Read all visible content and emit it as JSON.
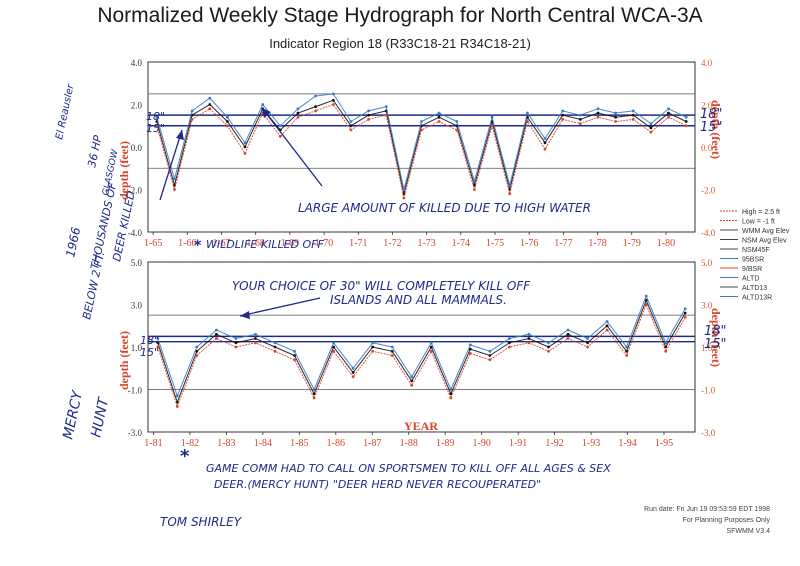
{
  "title": "Normalized Weekly Stage Hydrograph for North Central WCA-3A",
  "subtitle": "Indicator Region 18 (R33C18-21 R34C18-21)",
  "colors": {
    "axis_left": "#2b2b2b",
    "axis_right": "#e05a2b",
    "hand": "#1e2a8a",
    "black_series": "#111111",
    "red_series": "#d9442a",
    "blue_series": "#3a78c8"
  },
  "chart_data": [
    {
      "type": "line",
      "panel": "top",
      "x_ticks": [
        "1-65",
        "1-66",
        "1-67",
        "1-68",
        "1-69",
        "1-70",
        "1-71",
        "1-72",
        "1-73",
        "1-74",
        "1-75",
        "1-76",
        "1-77",
        "1-78",
        "1-79",
        "1-80"
      ],
      "y_ticks": [
        "4.0",
        "2.0",
        "0.0",
        "-2.0",
        "-4.0"
      ],
      "ylim": [
        -4.0,
        4.0
      ],
      "ylabel_left": "depth (feet)",
      "ylabel_right": "depth (feet)",
      "reference_lines": [
        2.5,
        1.5,
        1.0,
        -1.0
      ],
      "series": [
        {
          "name": "black",
          "color": "#111111",
          "values": [
            1.2,
            -1.8,
            1.5,
            2.0,
            1.2,
            0.0,
            1.8,
            0.8,
            1.6,
            1.9,
            2.2,
            1.0,
            1.5,
            1.7,
            -2.2,
            1.0,
            1.4,
            1.0,
            -1.8,
            1.2,
            -2.0,
            1.4,
            0.2,
            1.5,
            1.3,
            1.6,
            1.4,
            1.5,
            0.9,
            1.6,
            1.2
          ]
        },
        {
          "name": "red",
          "color": "#d9442a",
          "values": [
            1.0,
            -2.0,
            1.3,
            1.8,
            1.0,
            -0.3,
            1.6,
            0.5,
            1.4,
            1.7,
            2.0,
            0.8,
            1.3,
            1.5,
            -2.4,
            0.8,
            1.2,
            0.8,
            -2.0,
            1.0,
            -2.2,
            1.2,
            -0.1,
            1.3,
            1.1,
            1.4,
            1.2,
            1.3,
            0.7,
            1.4,
            1.0
          ]
        },
        {
          "name": "blue",
          "color": "#3a78c8",
          "values": [
            1.4,
            -1.5,
            1.7,
            2.3,
            1.4,
            0.2,
            2.0,
            1.0,
            1.8,
            2.4,
            2.5,
            1.2,
            1.7,
            1.9,
            -2.0,
            1.2,
            1.6,
            1.2,
            -1.6,
            1.4,
            -1.8,
            1.6,
            0.4,
            1.7,
            1.5,
            1.8,
            1.6,
            1.7,
            1.1,
            1.8,
            1.4
          ]
        }
      ]
    },
    {
      "type": "line",
      "panel": "bottom",
      "x_ticks": [
        "1-81",
        "1-82",
        "1-83",
        "1-84",
        "1-85",
        "1-86",
        "1-87",
        "1-88",
        "1-89",
        "1-90",
        "1-91",
        "1-92",
        "1-93",
        "1-94",
        "1-95"
      ],
      "y_ticks": [
        "5.0",
        "3.0",
        "1.0",
        "-1.0",
        "-3.0"
      ],
      "ylim": [
        -3.0,
        5.0
      ],
      "ylabel_left": "depth (feet)",
      "ylabel_right": "depth (feet)",
      "xlabel": "YEAR",
      "reference_lines": [
        2.5,
        1.5,
        1.25,
        -1.0
      ],
      "series": [
        {
          "name": "black",
          "color": "#111111",
          "values": [
            1.2,
            -1.6,
            0.8,
            1.6,
            1.2,
            1.4,
            1.0,
            0.6,
            -1.2,
            1.0,
            -0.2,
            1.0,
            0.8,
            -0.6,
            1.0,
            -1.2,
            0.9,
            0.6,
            1.2,
            1.4,
            1.0,
            1.6,
            1.2,
            2.0,
            0.8,
            3.2,
            1.0,
            2.6
          ]
        },
        {
          "name": "red",
          "color": "#d9442a",
          "values": [
            1.0,
            -1.8,
            0.6,
            1.4,
            1.0,
            1.2,
            0.8,
            0.4,
            -1.4,
            0.8,
            -0.4,
            0.8,
            0.6,
            -0.8,
            0.8,
            -1.4,
            0.7,
            0.4,
            1.0,
            1.2,
            0.8,
            1.4,
            1.0,
            1.8,
            0.6,
            3.0,
            0.8,
            2.4
          ]
        },
        {
          "name": "blue",
          "color": "#3a78c8",
          "values": [
            1.4,
            -1.3,
            1.0,
            1.8,
            1.4,
            1.6,
            1.2,
            0.8,
            -1.0,
            1.2,
            0.0,
            1.2,
            1.0,
            -0.4,
            1.2,
            -1.0,
            1.1,
            0.8,
            1.4,
            1.6,
            1.2,
            1.8,
            1.4,
            2.2,
            1.0,
            3.4,
            1.2,
            2.8
          ]
        }
      ]
    }
  ],
  "legend": [
    "High = 2.5 ft",
    "Low = -1 ft",
    "WMM Avg Elev",
    "NSM Avg Elev",
    "NSM45F",
    "95BSR",
    "9/BSR",
    "ALTD",
    "ALTD13",
    "ALTD13R"
  ],
  "annotations": {
    "top_left_18": "18\"",
    "top_left_15": "15\"",
    "top_right_18": "18\"",
    "top_right_15": "15\"",
    "bottom_left_18": "18\"",
    "bottom_left_15": "15\"",
    "bottom_right_18": "18\"",
    "bottom_right_15": "15\"",
    "large_amount": "LARGE AMOUNT OF KILLED DUE TO HIGH WATER",
    "wildlife_killed": "WILDLIFE KILLED OFF",
    "choice_line1": "YOUR CHOICE OF 30\" WILL COMPLETELY KILL OFF",
    "choice_line2": "ISLANDS AND ALL MAMMALS.",
    "game_line1": "GAME COMM HAD TO CALL ON SPORTSMEN TO KILL OFF ALL AGES & SEX",
    "game_line2": "DEER.(MERCY HUNT) \"DEER HERD NEVER RECOUPERATED\"",
    "signature": "TOM SHIRLEY",
    "side_1966": "1966",
    "side_thousands": "THOUSANDS OF",
    "side_deer_killed": "DEER KILLED",
    "side_below": "BELOW 2 FT.",
    "side_mercy": "MERCY",
    "side_hunt": "HUNT",
    "side_el": "El Reausler",
    "side_36hp": "36 HP",
    "side_glasgow": "GLASGOW"
  },
  "footer": {
    "run_date": "Run date: Fri Jun 19 09:53:59 EDT 1998",
    "planning": "For Planning Purposes Only",
    "model": "SFWMM V3.4"
  }
}
